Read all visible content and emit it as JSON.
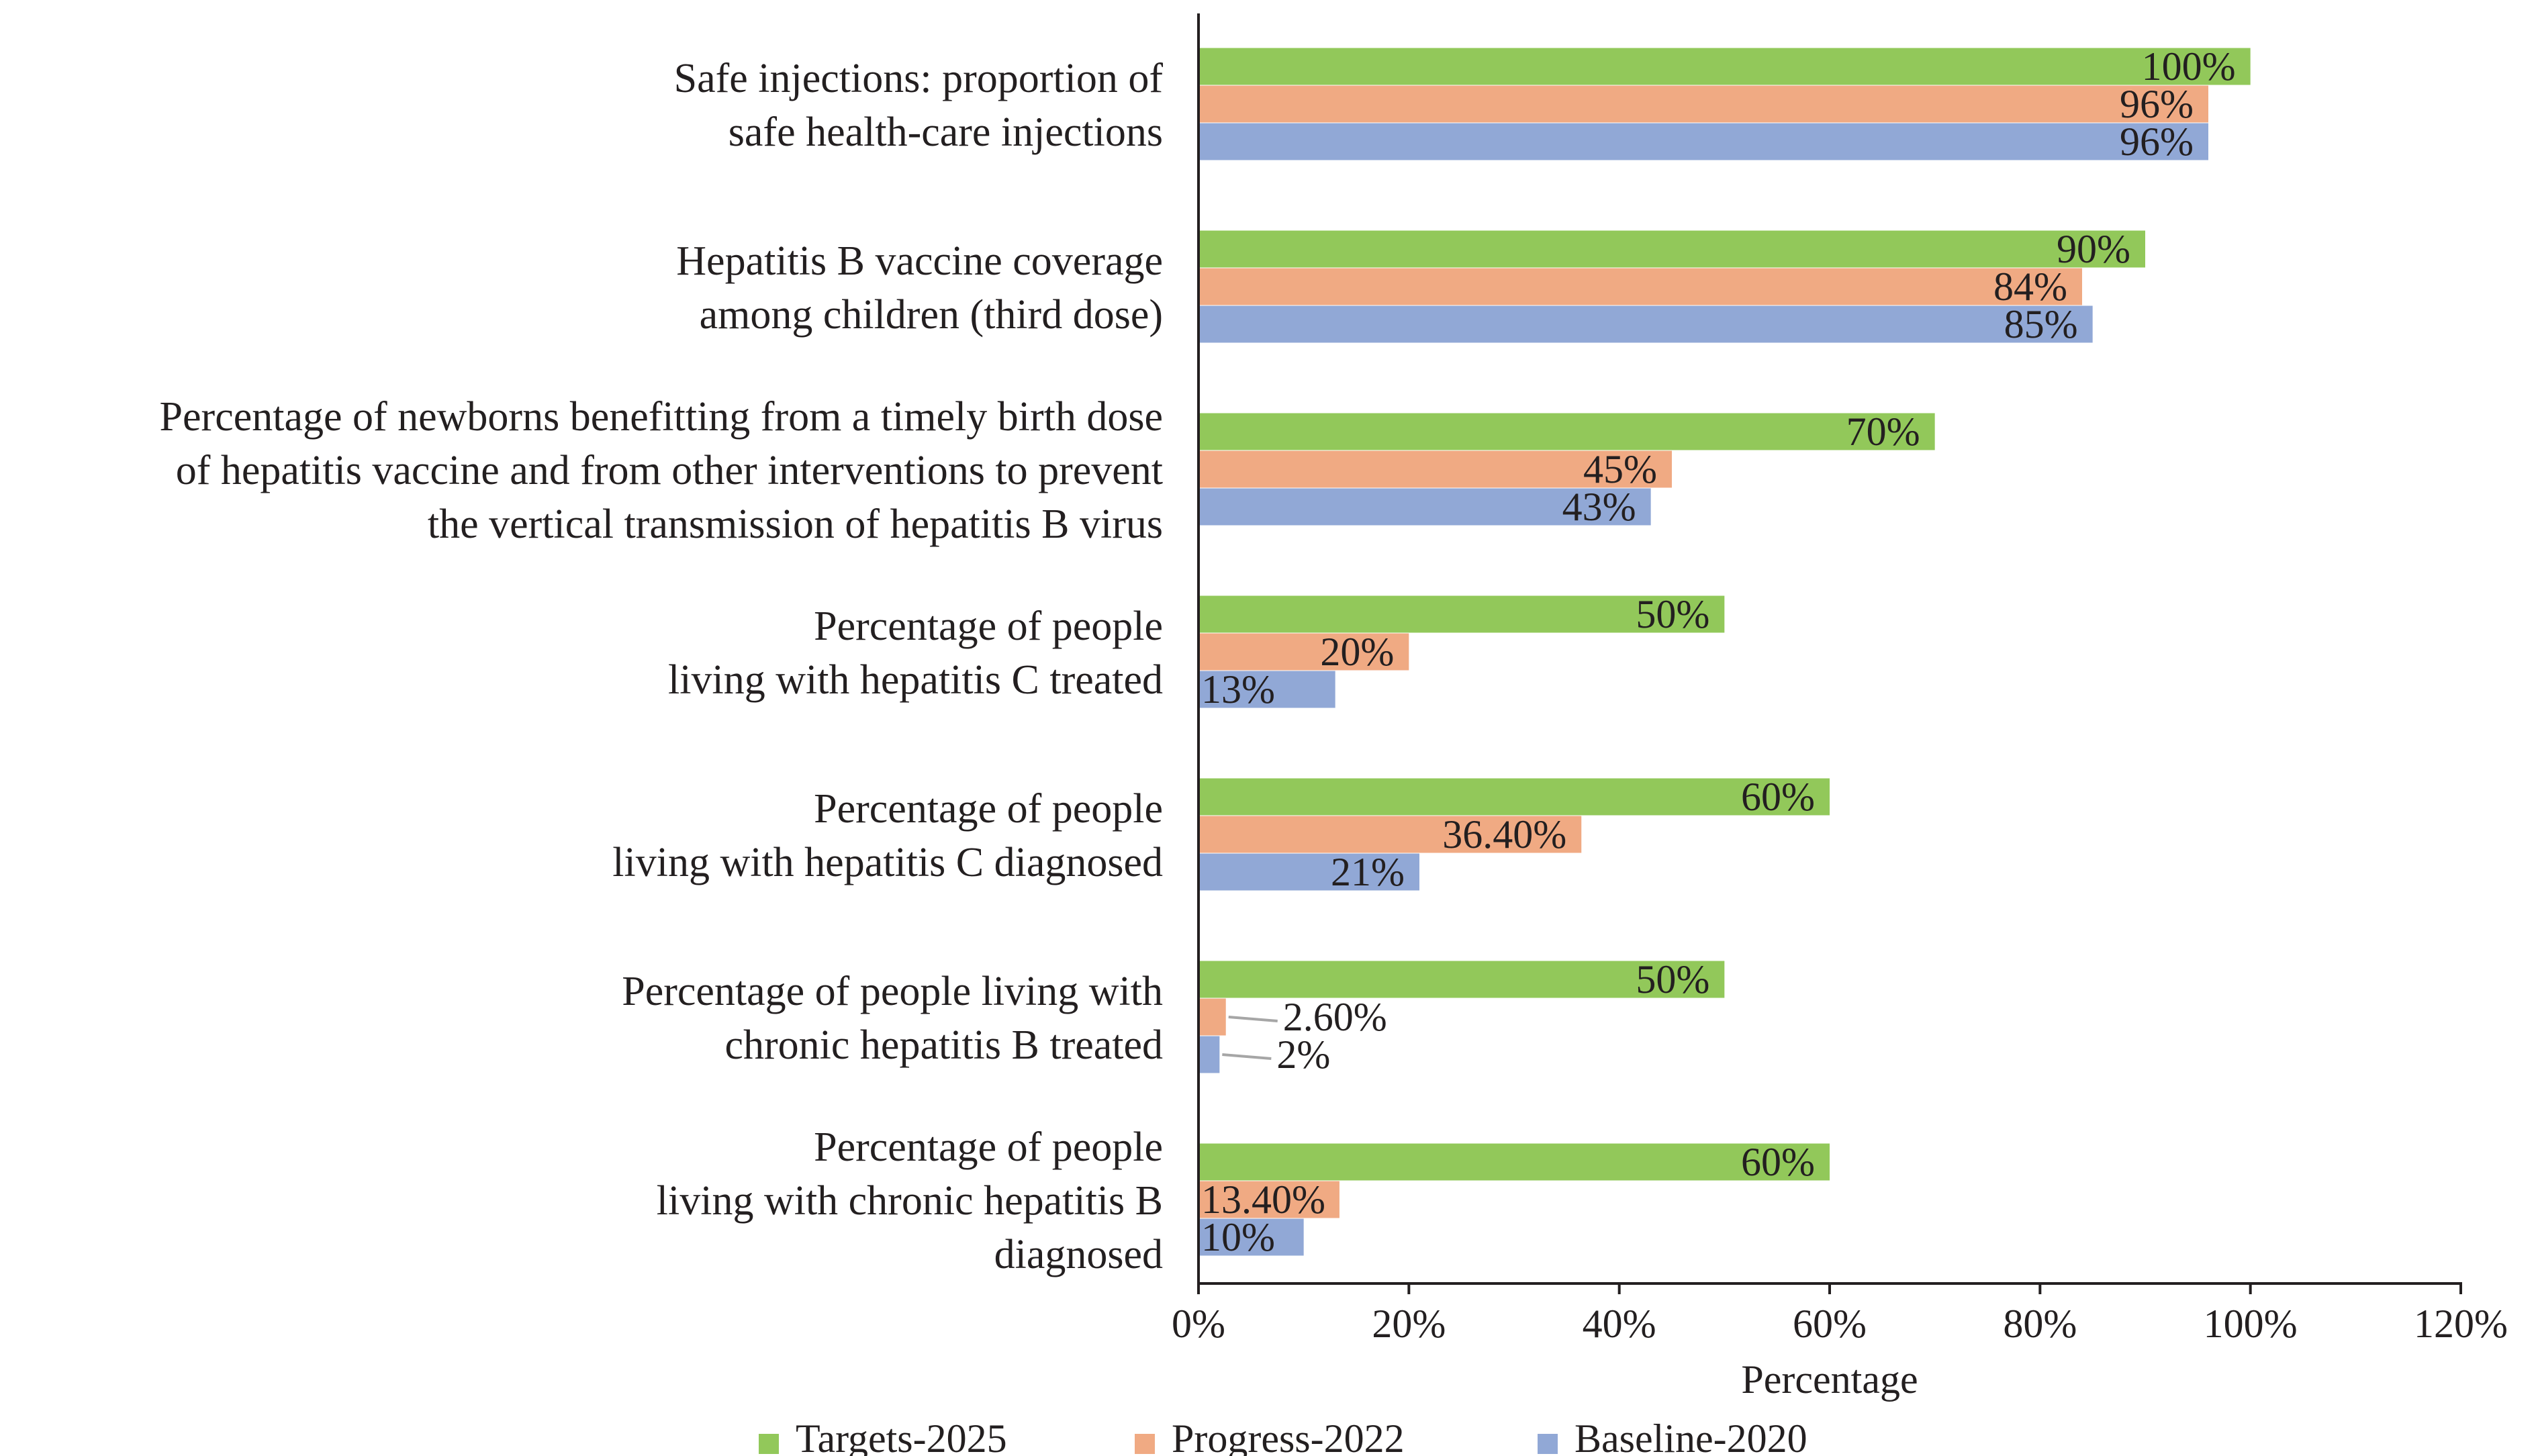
{
  "chart_data": {
    "type": "bar",
    "orientation": "horizontal",
    "categories": [
      [
        "Safe injections: proportion of",
        "safe health-care injections"
      ],
      [
        "Hepatitis B vaccine coverage",
        "among children (third dose)"
      ],
      [
        "Percentage of newborns  benefitting from a timely birth dose",
        "of hepatitis vaccine and from other interventions to prevent",
        "the vertical transmission of hepatitis B virus"
      ],
      [
        "Percentage of people",
        "living with hepatitis C treated"
      ],
      [
        "Percentage of people",
        "living with hepatitis C diagnosed"
      ],
      [
        "Percentage of people living with",
        "chronic hepatitis B treated"
      ],
      [
        "Percentage of people",
        "living with chronic hepatitis B",
        "diagnosed"
      ]
    ],
    "series": [
      {
        "name": "Targets-2025",
        "color": "#92c85a",
        "values": [
          100,
          90,
          70,
          50,
          60,
          50,
          60
        ],
        "labels": [
          "100%",
          "90%",
          "70%",
          "50%",
          "60%",
          "50%",
          "60%"
        ]
      },
      {
        "name": "Progress-2022",
        "color": "#f0aa83",
        "values": [
          96,
          84,
          45,
          20,
          36.4,
          2.6,
          13.4
        ],
        "labels": [
          "96%",
          "84%",
          "45%",
          "20%",
          "36.40%",
          "2.60%",
          "13.40%"
        ]
      },
      {
        "name": "Baseline-2020",
        "color": "#91a8d6",
        "values": [
          96,
          85,
          43,
          13,
          21,
          2,
          10
        ],
        "labels": [
          "96%",
          "85%",
          "43%",
          "13%",
          "21%",
          "2%",
          "10%"
        ]
      }
    ],
    "xlabel": "Percentage",
    "ylabel": "",
    "xlim": [
      0,
      120
    ],
    "xticks": [
      0,
      20,
      40,
      60,
      80,
      100,
      120
    ],
    "xtick_labels": [
      "0%",
      "20%",
      "40%",
      "60%",
      "80%",
      "100%",
      "120%"
    ],
    "grid": false,
    "legend_position": "bottom"
  }
}
